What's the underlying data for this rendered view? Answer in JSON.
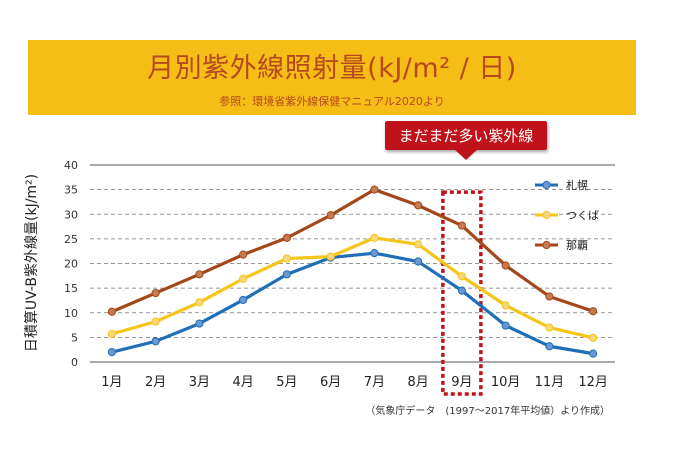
{
  "header": {
    "title": "月別紫外線照射量(kJ/m² / 日)",
    "subtitle": "参照：環境省紫外線保健マニュアル2020より"
  },
  "callout": {
    "text": "まだまだ多い紫外線",
    "target_category": "9月"
  },
  "source_note": "（気象庁データ　(1997〜2017年平均値）より作成）",
  "chart_data": {
    "type": "line",
    "categories": [
      "1月",
      "2月",
      "3月",
      "4月",
      "5月",
      "6月",
      "7月",
      "8月",
      "9月",
      "10月",
      "11月",
      "12月"
    ],
    "ylabel": "日積算UV-B紫外線量(kJ/m²)",
    "xlabel": "",
    "ylim": [
      0,
      40
    ],
    "yticks": [
      0,
      5,
      10,
      15,
      20,
      25,
      30,
      35,
      40
    ],
    "grid": true,
    "legend_position": "right",
    "highlight_category_index": 8,
    "series": [
      {
        "name": "札幌",
        "color": "#1f6fb8",
        "marker": "#6b97cf",
        "values": [
          2.0,
          4.2,
          7.8,
          12.6,
          17.8,
          21.2,
          22.1,
          20.4,
          14.5,
          7.4,
          3.2,
          1.7
        ]
      },
      {
        "name": "つくば",
        "color": "#f5c518",
        "marker": "#f7d77a",
        "values": [
          5.7,
          8.2,
          12.1,
          16.9,
          21.0,
          21.4,
          25.2,
          23.9,
          17.4,
          11.5,
          7.0,
          4.9
        ]
      },
      {
        "name": "那覇",
        "color": "#a3471a",
        "marker": "#c57a52",
        "values": [
          10.2,
          14.0,
          17.8,
          21.8,
          25.2,
          29.8,
          35.0,
          31.8,
          27.7,
          19.6,
          13.3,
          10.3
        ]
      }
    ]
  }
}
